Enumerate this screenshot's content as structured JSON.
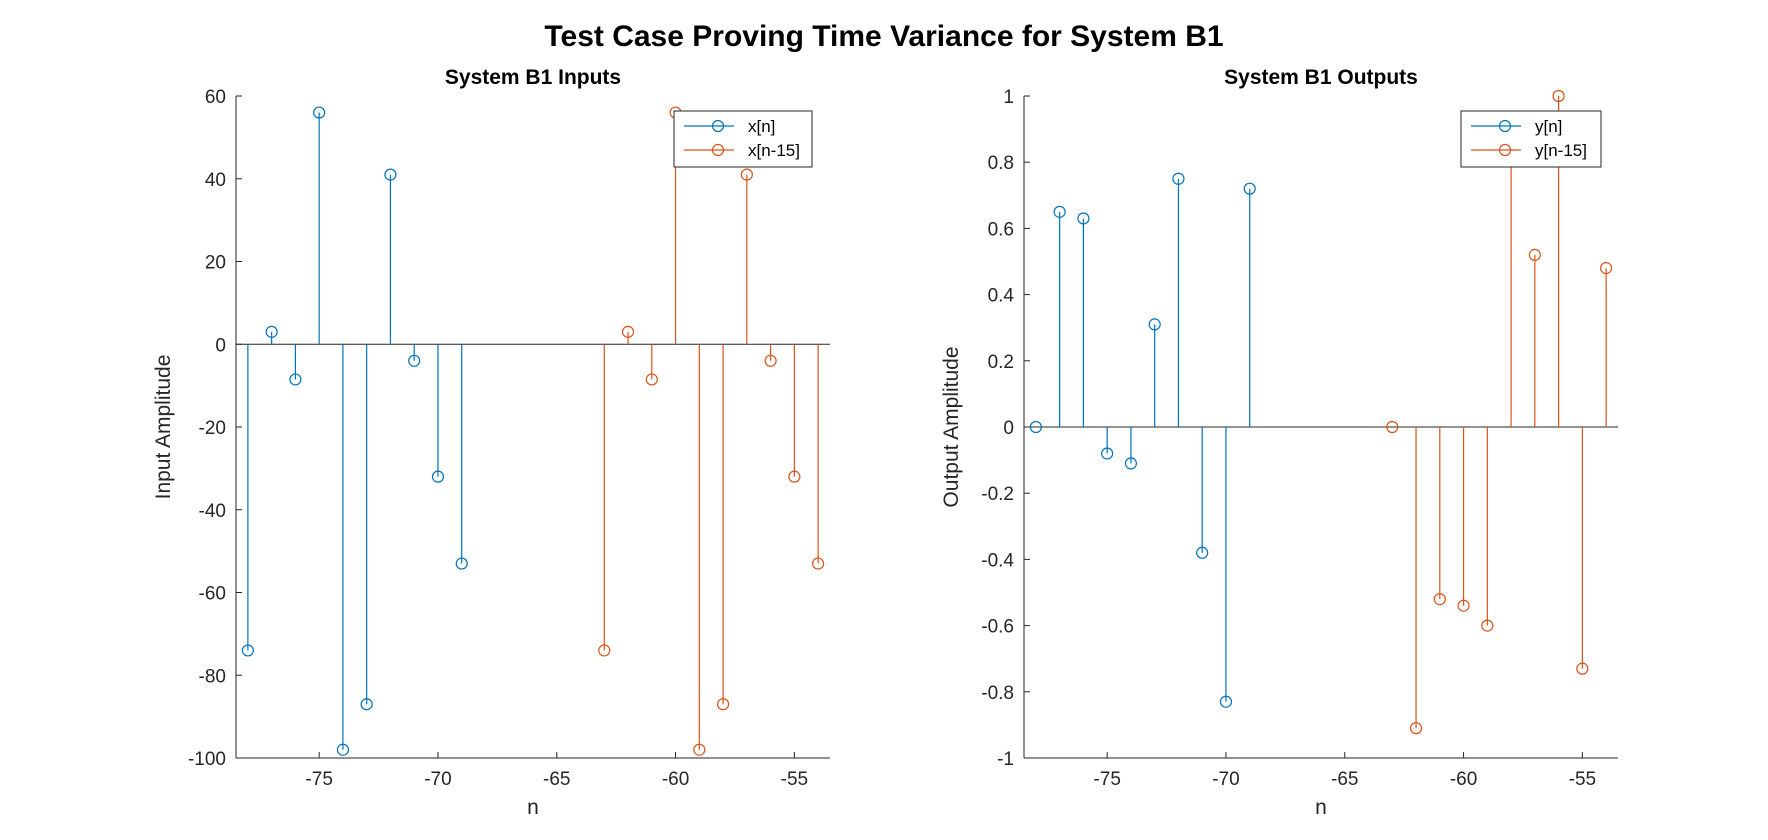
{
  "figure_title": "Test Case Proving Time Variance for System B1",
  "colors": {
    "series1": "#0072BD",
    "series2": "#D95319",
    "axis": "#262626"
  },
  "chart_data": [
    {
      "type": "stem",
      "title": "System B1 Inputs",
      "xlabel": "n",
      "ylabel": "Input Amplitude",
      "xlim": [
        -78.5,
        -53.5
      ],
      "ylim": [
        -100,
        60
      ],
      "xticks": [
        -75,
        -70,
        -65,
        -60,
        -55
      ],
      "xtick_labels": [
        "-75",
        "-70",
        "-65",
        "-60",
        "-55"
      ],
      "yticks": [
        -100,
        -80,
        -60,
        -40,
        -20,
        0,
        20,
        40,
        60
      ],
      "ytick_labels": [
        "-100",
        "-80",
        "-60",
        "-40",
        "-20",
        "0",
        "20",
        "40",
        "60"
      ],
      "grid": false,
      "legend_position": "top-right",
      "series": [
        {
          "name": "x[n]",
          "x": [
            -78,
            -77,
            -76,
            -75,
            -74,
            -73,
            -72,
            -71,
            -70,
            -69
          ],
          "y": [
            -74,
            3,
            -8.5,
            56,
            -98,
            -87,
            41,
            -4,
            -32,
            -53
          ]
        },
        {
          "name": "x[n-15]",
          "x": [
            -63,
            -62,
            -61,
            -60,
            -59,
            -58,
            -57,
            -56,
            -55,
            -54
          ],
          "y": [
            -74,
            3,
            -8.5,
            56,
            -98,
            -87,
            41,
            -4,
            -32,
            -53
          ]
        }
      ]
    },
    {
      "type": "stem",
      "title": "System B1 Outputs",
      "xlabel": "n",
      "ylabel": "Output Amplitude",
      "xlim": [
        -78.5,
        -53.5
      ],
      "ylim": [
        -1,
        1
      ],
      "xticks": [
        -75,
        -70,
        -65,
        -60,
        -55
      ],
      "xtick_labels": [
        "-75",
        "-70",
        "-65",
        "-60",
        "-55"
      ],
      "yticks": [
        -1,
        -0.8,
        -0.6,
        -0.4,
        -0.2,
        0,
        0.2,
        0.4,
        0.6,
        0.8,
        1
      ],
      "ytick_labels": [
        "-1",
        "-0.8",
        "-0.6",
        "-0.4",
        "-0.2",
        "0",
        "0.2",
        "0.4",
        "0.6",
        "0.8",
        "1"
      ],
      "grid": false,
      "legend_position": "top-right",
      "series": [
        {
          "name": "y[n]",
          "x": [
            -78,
            -77,
            -76,
            -75,
            -74,
            -73,
            -72,
            -71,
            -70,
            -69
          ],
          "y": [
            0,
            0.65,
            0.63,
            -0.08,
            -0.11,
            0.31,
            0.75,
            -0.38,
            -0.83,
            0.72
          ]
        },
        {
          "name": "y[n-15]",
          "x": [
            -63,
            -62,
            -61,
            -60,
            -59,
            -58,
            -57,
            -56,
            -55,
            -54
          ],
          "y": [
            0,
            -0.91,
            -0.52,
            -0.54,
            -0.6,
            0.82,
            0.52,
            1.0,
            -0.73,
            0.48
          ]
        }
      ]
    }
  ]
}
